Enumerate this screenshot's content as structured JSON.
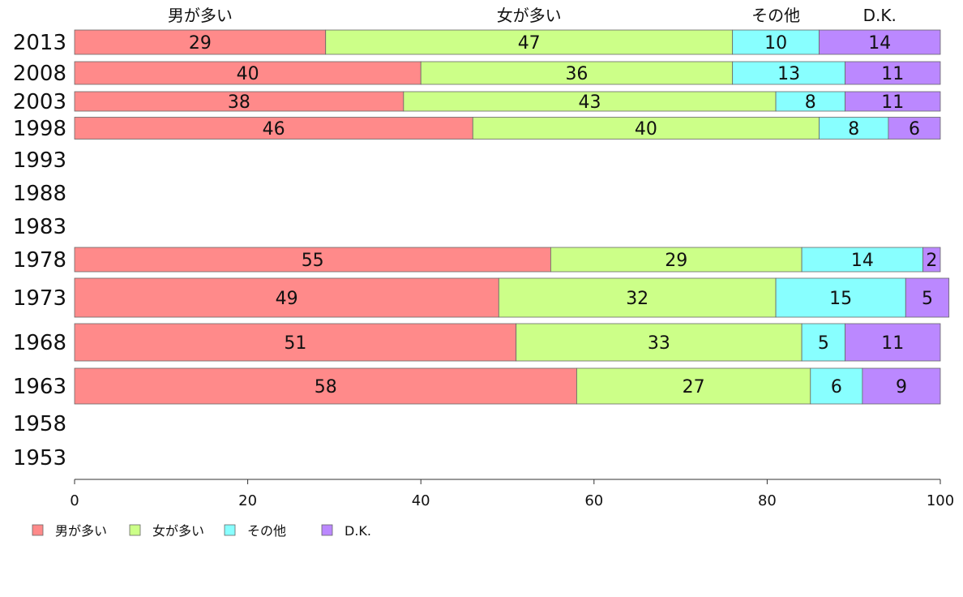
{
  "chart_data": {
    "type": "bar",
    "orientation": "horizontal",
    "stacked": true,
    "title": "",
    "xlabel": "",
    "ylabel": "",
    "xlim": [
      0,
      100
    ],
    "x_ticks": [
      0,
      20,
      40,
      60,
      80,
      100
    ],
    "grid": false,
    "legend_position": "bottom-left",
    "categories": [
      "2013",
      "2008",
      "2003",
      "1998",
      "1993",
      "1988",
      "1983",
      "1978",
      "1973",
      "1968",
      "1963",
      "1958",
      "1953"
    ],
    "series": [
      {
        "name": "男が多い",
        "color": "#ff8a8a",
        "values": [
          29,
          40,
          38,
          46,
          null,
          null,
          null,
          55,
          49,
          51,
          58,
          null,
          null
        ]
      },
      {
        "name": "女が多い",
        "color": "#ccff88",
        "values": [
          47,
          36,
          43,
          40,
          null,
          null,
          null,
          29,
          32,
          33,
          27,
          null,
          null
        ]
      },
      {
        "name": "その他",
        "color": "#88ffff",
        "values": [
          10,
          13,
          8,
          8,
          null,
          null,
          null,
          14,
          15,
          5,
          6,
          null,
          null
        ]
      },
      {
        "name": "D.K.",
        "color": "#bb88ff",
        "values": [
          14,
          11,
          11,
          6,
          null,
          null,
          null,
          2,
          5,
          11,
          9,
          null,
          null
        ]
      }
    ],
    "top_labels": [
      "男が多い",
      "女が多い",
      "その他",
      "D.K."
    ]
  }
}
